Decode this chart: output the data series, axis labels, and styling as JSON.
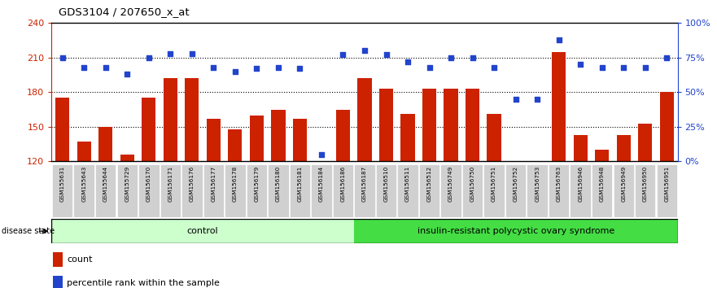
{
  "title": "GDS3104 / 207650_x_at",
  "samples": [
    "GSM155631",
    "GSM155643",
    "GSM155644",
    "GSM155729",
    "GSM156170",
    "GSM156171",
    "GSM156176",
    "GSM156177",
    "GSM156178",
    "GSM156179",
    "GSM156180",
    "GSM156181",
    "GSM156184",
    "GSM156186",
    "GSM156187",
    "GSM156510",
    "GSM156511",
    "GSM156512",
    "GSM156749",
    "GSM156750",
    "GSM156751",
    "GSM156752",
    "GSM156753",
    "GSM156763",
    "GSM156946",
    "GSM156948",
    "GSM156949",
    "GSM156950",
    "GSM156951"
  ],
  "bar_values": [
    175,
    137,
    150,
    126,
    175,
    192,
    192,
    157,
    148,
    160,
    165,
    157,
    120,
    165,
    192,
    183,
    161,
    183,
    183,
    183,
    161,
    120,
    120,
    215,
    143,
    130,
    143,
    153,
    180
  ],
  "percentile_values": [
    75,
    68,
    68,
    63,
    75,
    78,
    78,
    68,
    65,
    67,
    68,
    67,
    5,
    77,
    80,
    77,
    72,
    68,
    75,
    75,
    68,
    45,
    45,
    88,
    70,
    68,
    68,
    68,
    75
  ],
  "control_count": 14,
  "ymin": 120,
  "ymax": 240,
  "ylim_right": [
    0,
    100
  ],
  "yticks_left": [
    120,
    150,
    180,
    210,
    240
  ],
  "yticks_right": [
    0,
    25,
    50,
    75,
    100
  ],
  "ytick_labels_left": [
    "120",
    "150",
    "180",
    "210",
    "240"
  ],
  "ytick_labels_right": [
    "0%",
    "25%",
    "50%",
    "75%",
    "100%"
  ],
  "hgrid_vals": [
    150,
    180,
    210
  ],
  "bar_color": "#cc2200",
  "dot_color": "#2244cc",
  "control_label": "control",
  "disease_label": "insulin-resistant polycystic ovary syndrome",
  "disease_state_label": "disease state",
  "legend_count": "count",
  "legend_percentile": "percentile rank within the sample",
  "control_bg": "#ccffcc",
  "disease_bg": "#44dd44",
  "left_axis_color": "#cc2200",
  "right_axis_color": "#2244cc",
  "tick_bg_color": "#d0d0d0"
}
